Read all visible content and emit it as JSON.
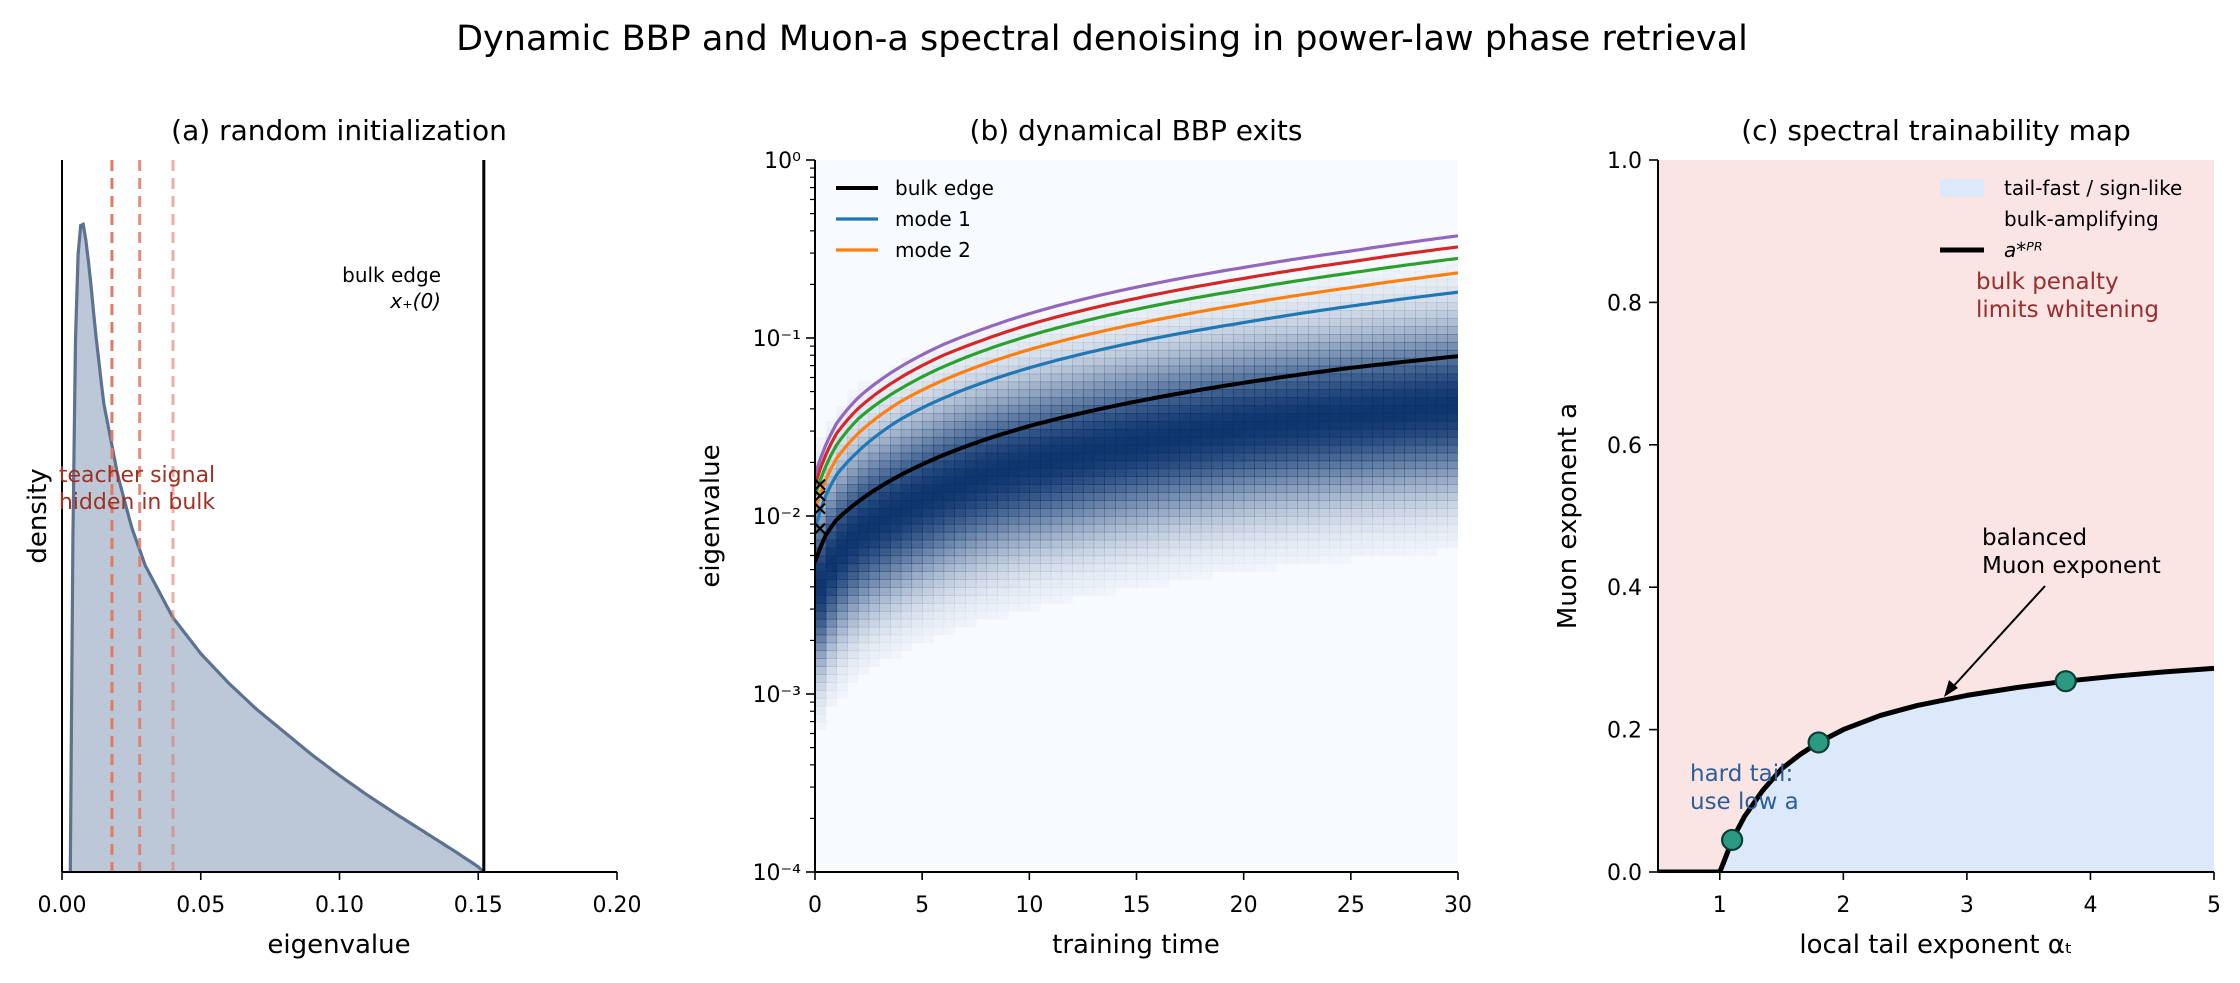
{
  "figure": {
    "suptitle": "Dynamic BBP and Muon-a spectral denoising in power-law phase retrieval"
  },
  "colors": {
    "density_fill": "#bcc8d8",
    "density_line": "#5c7290",
    "signal_lines": "#e07b63",
    "signal_text": "#a03024",
    "bulk_edge": "#000000",
    "heat_dark": "#08306b",
    "mode_colors": [
      "#1f77b4",
      "#ff7f0e",
      "#2ca02c",
      "#d62728",
      "#9467bd"
    ],
    "tail_fast": "#dce9fb",
    "bulk_amp": "#fbe4e4",
    "marker_fill": "#2a9a82",
    "blue_text": "#2b5f96",
    "red_text": "#9a2e2e"
  },
  "chart_data": [
    {
      "type": "area",
      "title": "(a) random initialization",
      "xlabel": "eigenvalue",
      "ylabel": "density",
      "xlim": [
        0.0,
        0.2
      ],
      "xticks": [
        "0.00",
        "0.05",
        "0.10",
        "0.15",
        "0.20"
      ],
      "density": {
        "support": [
          0.003,
          0.152
        ],
        "peak_x": 0.007,
        "x": [
          0.003,
          0.004,
          0.005,
          0.006,
          0.007,
          0.008,
          0.01,
          0.012,
          0.015,
          0.02,
          0.025,
          0.03,
          0.04,
          0.05,
          0.06,
          0.07,
          0.08,
          0.09,
          0.1,
          0.11,
          0.12,
          0.13,
          0.14,
          0.145,
          0.15,
          0.152
        ],
        "y": [
          0.0,
          0.55,
          0.86,
          0.97,
          1.0,
          0.99,
          0.92,
          0.83,
          0.72,
          0.61,
          0.53,
          0.47,
          0.39,
          0.335,
          0.29,
          0.25,
          0.215,
          0.18,
          0.148,
          0.118,
          0.09,
          0.063,
          0.036,
          0.022,
          0.008,
          0.0
        ]
      },
      "signal_eigenvalues": [
        0.018,
        0.028,
        0.04
      ],
      "bulk_edge": 0.152,
      "annotations": {
        "bulk_edge_line1": "bulk edge",
        "bulk_edge_line2": "x₊(0)",
        "signal_line1": "teacher signal",
        "signal_line2": "hidden in bulk"
      }
    },
    {
      "type": "heatmap",
      "title": "(b) dynamical BBP exits",
      "xlabel": "training time",
      "ylabel": "eigenvalue",
      "xlim": [
        0,
        30
      ],
      "ylim": [
        0.0001,
        1
      ],
      "yscale": "log",
      "xticks": [
        0,
        5,
        10,
        15,
        20,
        25,
        30
      ],
      "yticks": [
        "10⁻⁴",
        "10⁻³",
        "10⁻²",
        "10⁻¹",
        "10⁰"
      ],
      "legend_position": "upper-left",
      "bulk": {
        "center": {
          "t": [
            0,
            1,
            2,
            4,
            8,
            12,
            16,
            20,
            25,
            30
          ],
          "value": [
            0.0035,
            0.006,
            0.008,
            0.011,
            0.017,
            0.022,
            0.027,
            0.032,
            0.037,
            0.042
          ]
        },
        "log_width": 0.55
      },
      "series": [
        {
          "name": "bulk edge",
          "t": [
            0,
            0.5,
            1,
            2,
            4,
            6,
            8,
            10,
            15,
            20,
            25,
            30
          ],
          "values": [
            0.0055,
            0.0078,
            0.0095,
            0.012,
            0.017,
            0.022,
            0.027,
            0.032,
            0.044,
            0.056,
            0.068,
            0.079
          ]
        },
        {
          "name": "mode 1",
          "t": [
            0,
            0.5,
            1,
            2,
            4,
            6,
            8,
            10,
            15,
            20,
            25,
            30
          ],
          "values": [
            0.0085,
            0.013,
            0.017,
            0.023,
            0.035,
            0.046,
            0.057,
            0.068,
            0.095,
            0.122,
            0.151,
            0.181
          ]
        },
        {
          "name": "mode 2",
          "t": [
            0,
            0.5,
            1,
            2,
            4,
            6,
            8,
            10,
            15,
            20,
            25,
            30
          ],
          "values": [
            0.011,
            0.016,
            0.021,
            0.029,
            0.044,
            0.058,
            0.072,
            0.086,
            0.12,
            0.155,
            0.192,
            0.232
          ]
        },
        {
          "name": "",
          "t": [
            0,
            0.5,
            1,
            2,
            4,
            6,
            8,
            10,
            15,
            20,
            25,
            30
          ],
          "values": [
            0.013,
            0.019,
            0.025,
            0.035,
            0.052,
            0.069,
            0.086,
            0.103,
            0.145,
            0.187,
            0.232,
            0.28
          ]
        },
        {
          "name": "",
          "t": [
            0,
            0.5,
            1,
            2,
            4,
            6,
            8,
            10,
            15,
            20,
            25,
            30
          ],
          "values": [
            0.015,
            0.022,
            0.029,
            0.04,
            0.06,
            0.08,
            0.099,
            0.119,
            0.167,
            0.216,
            0.268,
            0.325
          ]
        },
        {
          "name": "",
          "t": [
            0,
            0.5,
            1,
            2,
            4,
            6,
            8,
            10,
            15,
            20,
            25,
            30
          ],
          "values": [
            0.017,
            0.025,
            0.033,
            0.046,
            0.069,
            0.092,
            0.114,
            0.137,
            0.193,
            0.249,
            0.308,
            0.375
          ]
        }
      ],
      "start_markers": [
        0.0085,
        0.011,
        0.013,
        0.015
      ]
    },
    {
      "type": "area",
      "title": "(c) spectral trainability map",
      "xlabel": "local tail exponent  αₜ",
      "ylabel": "Muon exponent a",
      "xlim": [
        0.5,
        5
      ],
      "ylim": [
        0,
        1
      ],
      "xticks": [
        1,
        2,
        3,
        4,
        5
      ],
      "yticks": [
        "0.0",
        "0.2",
        "0.4",
        "0.6",
        "0.8",
        "1.0"
      ],
      "legend_position": "upper-right",
      "legend": [
        "tail-fast / sign-like",
        "bulk-amplifying",
        "a*ᴾᴿ"
      ],
      "boundary": {
        "x": [
          0.5,
          1.0,
          1.05,
          1.1,
          1.2,
          1.35,
          1.5,
          1.65,
          1.8,
          2.0,
          2.3,
          2.6,
          3.0,
          3.4,
          3.8,
          4.2,
          4.6,
          5.0
        ],
        "y": [
          0.0,
          0.0,
          0.022,
          0.045,
          0.078,
          0.115,
          0.145,
          0.165,
          0.182,
          0.2,
          0.22,
          0.234,
          0.248,
          0.259,
          0.268,
          0.275,
          0.281,
          0.286
        ]
      },
      "markers": [
        {
          "x": 1.1,
          "y": 0.045
        },
        {
          "x": 1.8,
          "y": 0.182
        },
        {
          "x": 3.8,
          "y": 0.268
        }
      ],
      "annotations": {
        "bulk_penalty_line1": "bulk penalty",
        "bulk_penalty_line2": "limits whitening",
        "balanced_line1": "balanced",
        "balanced_line2": "Muon exponent",
        "balanced_target": {
          "x": 2.85,
          "y": 0.248
        },
        "hard_tail_line1": "hard tail:",
        "hard_tail_line2": "use low a"
      }
    }
  ]
}
